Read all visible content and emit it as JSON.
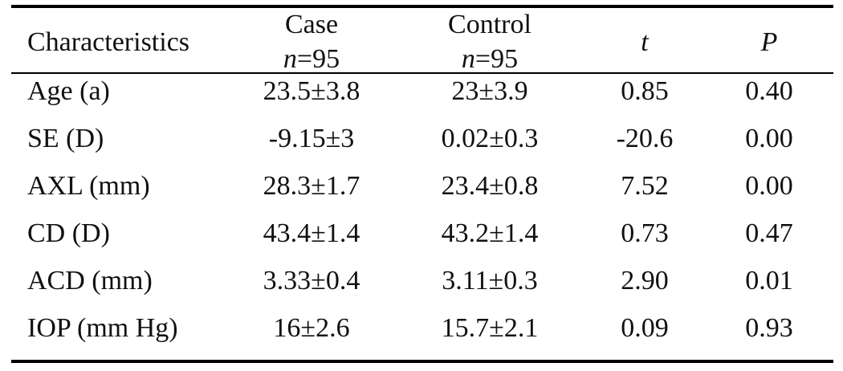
{
  "table": {
    "headers": {
      "characteristics": "Characteristics",
      "case": {
        "label": "Case",
        "n_symbol": "n",
        "n_value": "=95"
      },
      "control": {
        "label": "Control",
        "n_symbol": "n",
        "n_value": "=95"
      },
      "t": "t",
      "p": "P"
    },
    "rows": [
      {
        "characteristic": "Age (a)",
        "case": "23.5±3.8",
        "control": "23±3.9",
        "t": "0.85",
        "p": "0.40"
      },
      {
        "characteristic": "SE (D)",
        "case": "-9.15±3",
        "control": "0.02±0.3",
        "t": "-20.6",
        "p": "0.00"
      },
      {
        "characteristic": "AXL (mm)",
        "case": "28.3±1.7",
        "control": "23.4±0.8",
        "t": "7.52",
        "p": "0.00"
      },
      {
        "characteristic": "CD (D)",
        "case": "43.4±1.4",
        "control": "43.2±1.4",
        "t": "0.73",
        "p": "0.47"
      },
      {
        "characteristic": "ACD (mm)",
        "case": "3.33±0.4",
        "control": "3.11±0.3",
        "t": "2.90",
        "p": "0.01"
      },
      {
        "characteristic": "IOP (mm Hg)",
        "case": "16±2.6",
        "control": "15.7±2.1",
        "t": "0.09",
        "p": "0.93"
      }
    ]
  }
}
